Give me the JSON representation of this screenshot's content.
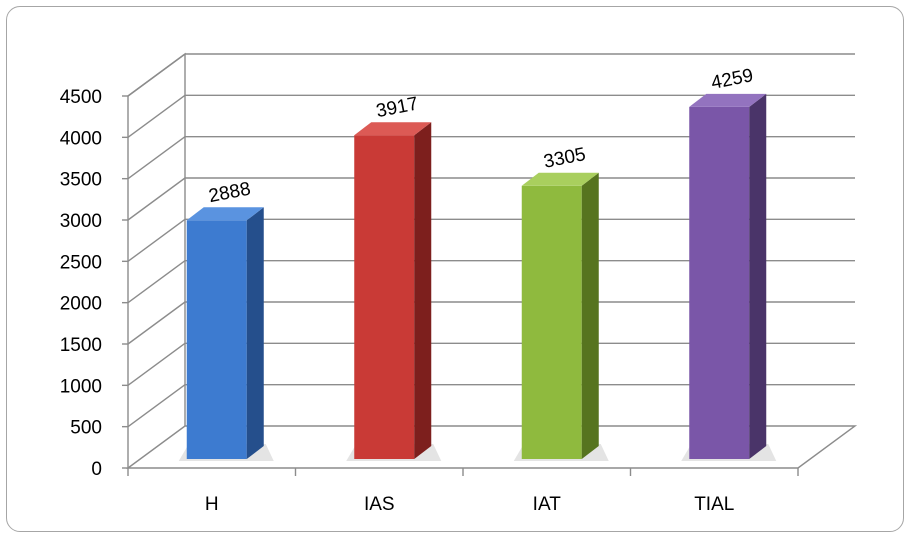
{
  "chart_data": {
    "type": "bar",
    "style": "3d-column",
    "categories": [
      "H",
      "IAS",
      "IAT",
      "TIAL"
    ],
    "values": [
      2888,
      3917,
      3305,
      4259
    ],
    "data_labels": [
      "2888",
      "3917",
      "3305",
      "4259"
    ],
    "yticks": [
      0,
      500,
      1000,
      1500,
      2000,
      2500,
      3000,
      3500,
      4000,
      4500
    ],
    "ytick_labels": [
      "0",
      "500",
      "1000",
      "1500",
      "2000",
      "2500",
      "3000",
      "3500",
      "4000",
      "4500"
    ],
    "ylim": [
      0,
      4500
    ],
    "grid": true,
    "legend": "none",
    "colors": [
      "#3d7bd0",
      "#c93a36",
      "#8fba3e",
      "#7a56a8"
    ],
    "side_colors": [
      "#254f8c",
      "#7d1f1d",
      "#56741f",
      "#4a3469"
    ],
    "top_colors": [
      "#5a93e0",
      "#dc5a55",
      "#a9cf5e",
      "#9373bf"
    ]
  }
}
